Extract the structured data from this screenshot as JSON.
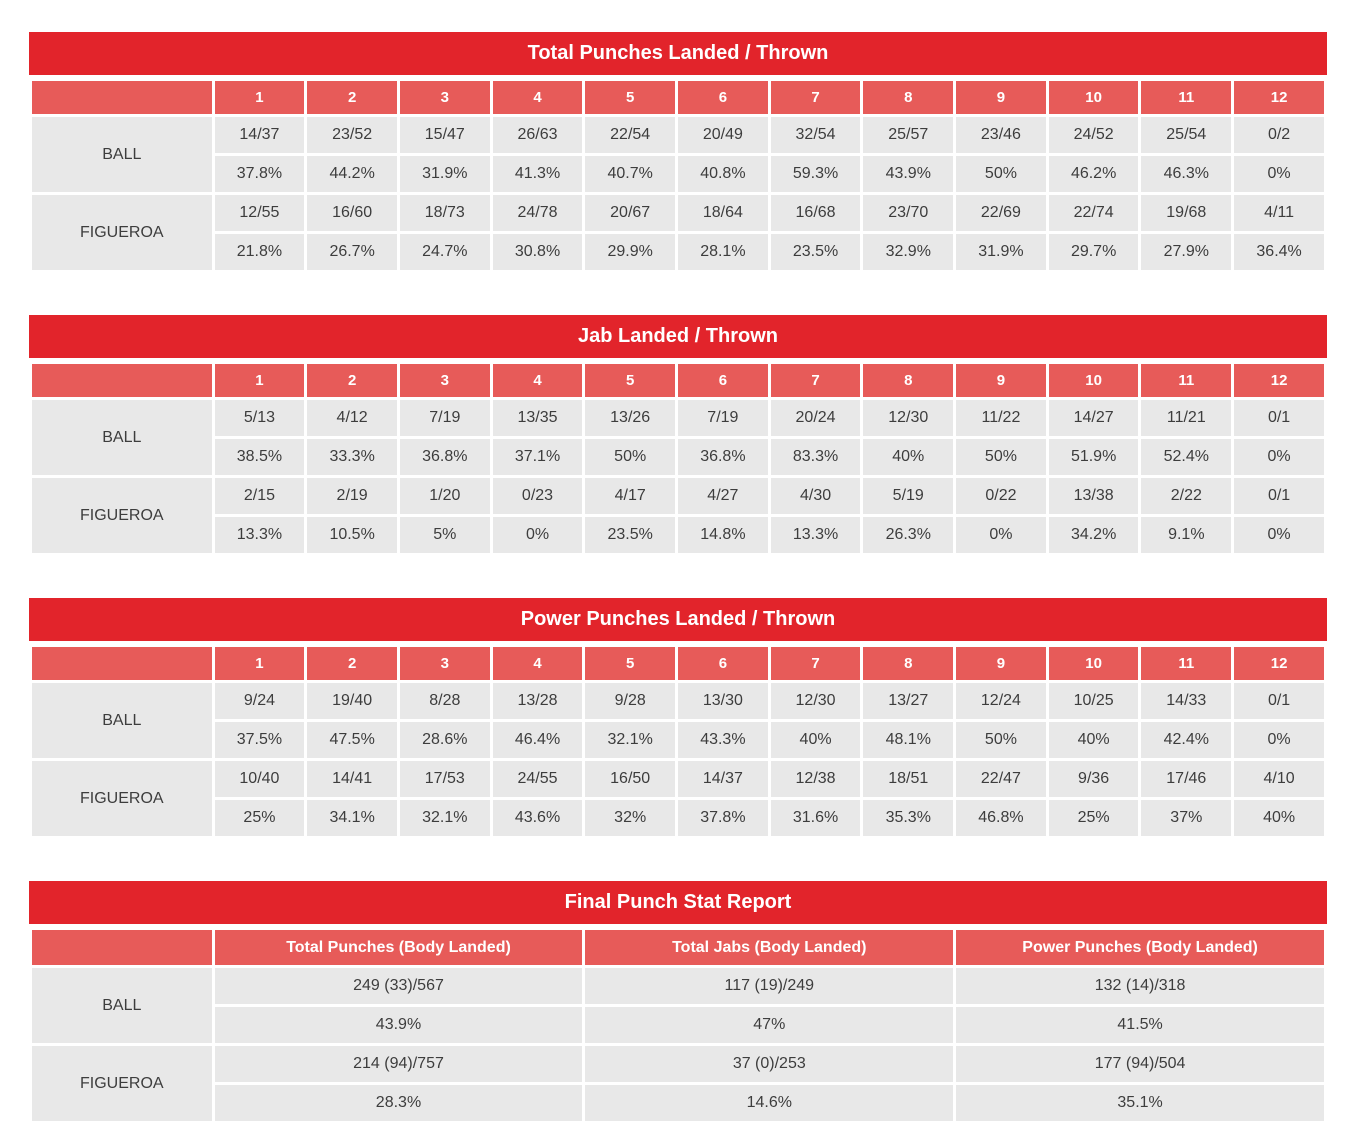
{
  "colors": {
    "header_red": "#e2242b",
    "subheader_red": "#e75b59",
    "cell_gray": "#e8e8e8",
    "text_gray": "#3d3d3d"
  },
  "round_tables": [
    {
      "title": "Total Punches Landed / Thrown",
      "rounds": [
        "1",
        "2",
        "3",
        "4",
        "5",
        "6",
        "7",
        "8",
        "9",
        "10",
        "11",
        "12"
      ],
      "fighters": [
        {
          "name": "BALL",
          "landed_thrown": [
            "14/37",
            "23/52",
            "15/47",
            "26/63",
            "22/54",
            "20/49",
            "32/54",
            "25/57",
            "23/46",
            "24/52",
            "25/54",
            "0/2"
          ],
          "percent": [
            "37.8%",
            "44.2%",
            "31.9%",
            "41.3%",
            "40.7%",
            "40.8%",
            "59.3%",
            "43.9%",
            "50%",
            "46.2%",
            "46.3%",
            "0%"
          ]
        },
        {
          "name": "FIGUEROA",
          "landed_thrown": [
            "12/55",
            "16/60",
            "18/73",
            "24/78",
            "20/67",
            "18/64",
            "16/68",
            "23/70",
            "22/69",
            "22/74",
            "19/68",
            "4/11"
          ],
          "percent": [
            "21.8%",
            "26.7%",
            "24.7%",
            "30.8%",
            "29.9%",
            "28.1%",
            "23.5%",
            "32.9%",
            "31.9%",
            "29.7%",
            "27.9%",
            "36.4%"
          ]
        }
      ]
    },
    {
      "title": "Jab Landed / Thrown",
      "rounds": [
        "1",
        "2",
        "3",
        "4",
        "5",
        "6",
        "7",
        "8",
        "9",
        "10",
        "11",
        "12"
      ],
      "fighters": [
        {
          "name": "BALL",
          "landed_thrown": [
            "5/13",
            "4/12",
            "7/19",
            "13/35",
            "13/26",
            "7/19",
            "20/24",
            "12/30",
            "11/22",
            "14/27",
            "11/21",
            "0/1"
          ],
          "percent": [
            "38.5%",
            "33.3%",
            "36.8%",
            "37.1%",
            "50%",
            "36.8%",
            "83.3%",
            "40%",
            "50%",
            "51.9%",
            "52.4%",
            "0%"
          ]
        },
        {
          "name": "FIGUEROA",
          "landed_thrown": [
            "2/15",
            "2/19",
            "1/20",
            "0/23",
            "4/17",
            "4/27",
            "4/30",
            "5/19",
            "0/22",
            "13/38",
            "2/22",
            "0/1"
          ],
          "percent": [
            "13.3%",
            "10.5%",
            "5%",
            "0%",
            "23.5%",
            "14.8%",
            "13.3%",
            "26.3%",
            "0%",
            "34.2%",
            "9.1%",
            "0%"
          ]
        }
      ]
    },
    {
      "title": "Power Punches Landed / Thrown",
      "rounds": [
        "1",
        "2",
        "3",
        "4",
        "5",
        "6",
        "7",
        "8",
        "9",
        "10",
        "11",
        "12"
      ],
      "fighters": [
        {
          "name": "BALL",
          "landed_thrown": [
            "9/24",
            "19/40",
            "8/28",
            "13/28",
            "9/28",
            "13/30",
            "12/30",
            "13/27",
            "12/24",
            "10/25",
            "14/33",
            "0/1"
          ],
          "percent": [
            "37.5%",
            "47.5%",
            "28.6%",
            "46.4%",
            "32.1%",
            "43.3%",
            "40%",
            "48.1%",
            "50%",
            "40%",
            "42.4%",
            "0%"
          ]
        },
        {
          "name": "FIGUEROA",
          "landed_thrown": [
            "10/40",
            "14/41",
            "17/53",
            "24/55",
            "16/50",
            "14/37",
            "12/38",
            "18/51",
            "22/47",
            "9/36",
            "17/46",
            "4/10"
          ],
          "percent": [
            "25%",
            "34.1%",
            "32.1%",
            "43.6%",
            "32%",
            "37.8%",
            "31.6%",
            "35.3%",
            "46.8%",
            "25%",
            "37%",
            "40%"
          ]
        }
      ]
    }
  ],
  "final_table": {
    "title": "Final Punch Stat Report",
    "columns": [
      "Total Punches (Body Landed)",
      "Total Jabs (Body Landed)",
      "Power Punches (Body Landed)"
    ],
    "fighters": [
      {
        "name": "BALL",
        "values": [
          "249 (33)/567",
          "117 (19)/249",
          "132 (14)/318"
        ],
        "percent": [
          "43.9%",
          "47%",
          "41.5%"
        ]
      },
      {
        "name": "FIGUEROA",
        "values": [
          "214 (94)/757",
          "37 (0)/253",
          "177 (94)/504"
        ],
        "percent": [
          "28.3%",
          "14.6%",
          "35.1%"
        ]
      }
    ]
  }
}
